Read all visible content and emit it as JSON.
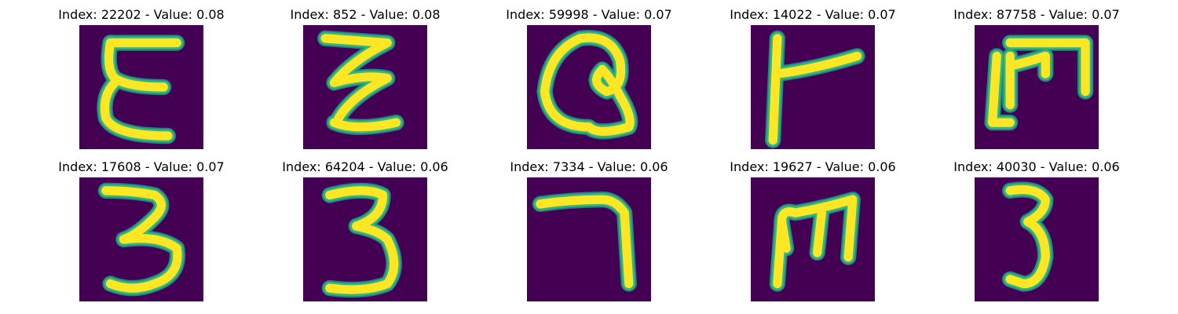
{
  "colors": {
    "background": "#440154",
    "stroke_core": "#fde725",
    "stroke_edge": "#35b779",
    "stroke_mid": "#21918c"
  },
  "panels": [
    {
      "title": "Index: 22202 - Value: 0.08"
    },
    {
      "title": "Index: 852 - Value: 0.08"
    },
    {
      "title": "Index: 59998 - Value: 0.07"
    },
    {
      "title": "Index: 14022 - Value: 0.07"
    },
    {
      "title": "Index: 87758 - Value: 0.07"
    },
    {
      "title": "Index: 17608 - Value: 0.07"
    },
    {
      "title": "Index: 64204 - Value: 0.06"
    },
    {
      "title": "Index: 7334 - Value: 0.06"
    },
    {
      "title": "Index: 19627 - Value: 0.06"
    },
    {
      "title": "Index: 40030 - Value: 0.06"
    }
  ]
}
